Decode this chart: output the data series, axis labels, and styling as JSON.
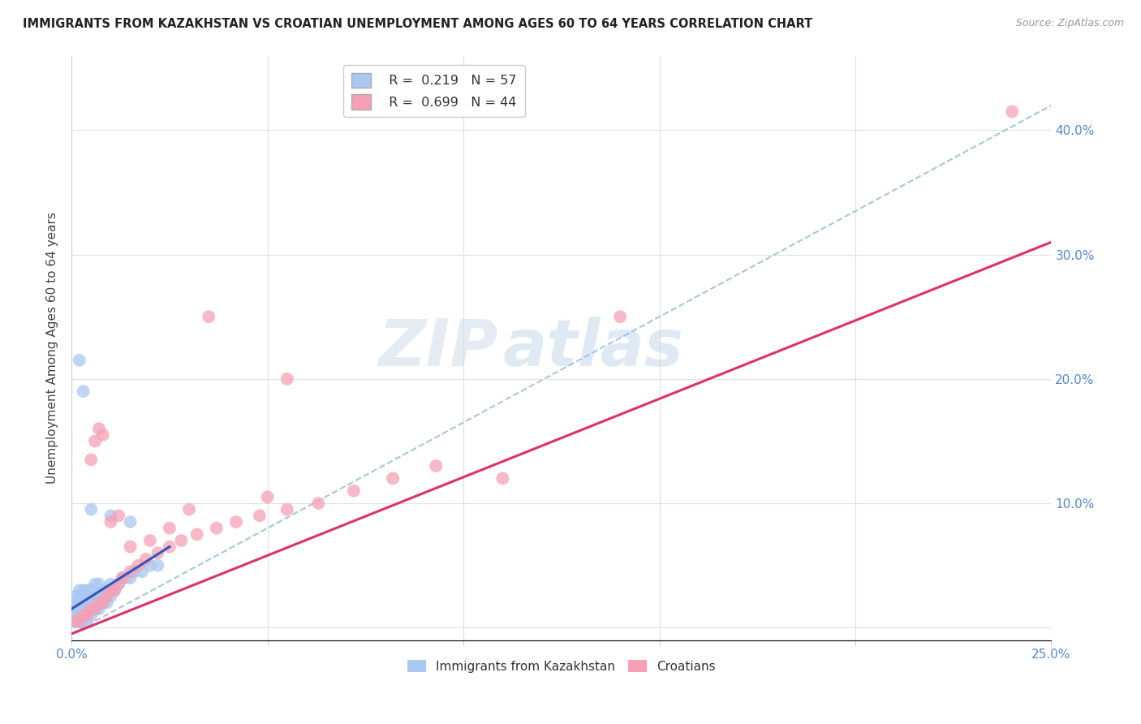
{
  "title": "IMMIGRANTS FROM KAZAKHSTAN VS CROATIAN UNEMPLOYMENT AMONG AGES 60 TO 64 YEARS CORRELATION CHART",
  "source": "Source: ZipAtlas.com",
  "ylabel": "Unemployment Among Ages 60 to 64 years",
  "xlim": [
    0.0,
    0.25
  ],
  "ylim": [
    -0.01,
    0.46
  ],
  "yticks": [
    0.0,
    0.1,
    0.2,
    0.3,
    0.4
  ],
  "ytick_labels_right": [
    "",
    "10.0%",
    "20.0%",
    "30.0%",
    "40.0%"
  ],
  "xticks": [
    0.0,
    0.05,
    0.1,
    0.15,
    0.2,
    0.25
  ],
  "xtick_labels": [
    "0.0%",
    "",
    "",
    "",
    "",
    "25.0%"
  ],
  "watermark_zip": "ZIP",
  "watermark_atlas": "atlas",
  "legend_R1": "R =  0.219",
  "legend_N1": "N = 57",
  "legend_R2": "R =  0.699",
  "legend_N2": "N = 44",
  "color_kaz": "#aac8f0",
  "color_cro": "#f5a0b5",
  "color_line_kaz": "#3355bb",
  "color_line_cro": "#e03065",
  "color_line_diag": "#99bbdd",
  "background_color": "#ffffff",
  "grid_color": "#e0e0e0",
  "kaz_x": [
    0.001,
    0.001,
    0.001,
    0.001,
    0.001,
    0.001,
    0.001,
    0.001,
    0.002,
    0.002,
    0.002,
    0.002,
    0.002,
    0.002,
    0.002,
    0.002,
    0.003,
    0.003,
    0.003,
    0.003,
    0.003,
    0.003,
    0.004,
    0.004,
    0.004,
    0.004,
    0.004,
    0.005,
    0.005,
    0.005,
    0.005,
    0.006,
    0.006,
    0.006,
    0.007,
    0.007,
    0.007,
    0.008,
    0.008,
    0.009,
    0.009,
    0.01,
    0.01,
    0.011,
    0.012,
    0.013,
    0.014,
    0.015,
    0.016,
    0.018,
    0.02,
    0.022,
    0.002,
    0.003,
    0.005,
    0.01,
    0.015
  ],
  "kaz_y": [
    0.005,
    0.005,
    0.005,
    0.01,
    0.01,
    0.015,
    0.02,
    0.025,
    0.005,
    0.005,
    0.01,
    0.01,
    0.015,
    0.02,
    0.025,
    0.03,
    0.005,
    0.01,
    0.015,
    0.02,
    0.025,
    0.03,
    0.005,
    0.01,
    0.015,
    0.025,
    0.03,
    0.01,
    0.015,
    0.02,
    0.03,
    0.015,
    0.025,
    0.035,
    0.015,
    0.025,
    0.035,
    0.02,
    0.03,
    0.02,
    0.03,
    0.025,
    0.035,
    0.03,
    0.035,
    0.04,
    0.04,
    0.04,
    0.045,
    0.045,
    0.05,
    0.05,
    0.215,
    0.19,
    0.095,
    0.09,
    0.085
  ],
  "cro_x": [
    0.001,
    0.002,
    0.003,
    0.004,
    0.005,
    0.006,
    0.007,
    0.008,
    0.009,
    0.01,
    0.011,
    0.012,
    0.013,
    0.015,
    0.017,
    0.019,
    0.022,
    0.025,
    0.028,
    0.032,
    0.037,
    0.042,
    0.048,
    0.055,
    0.063,
    0.072,
    0.082,
    0.093,
    0.035,
    0.055,
    0.11,
    0.14,
    0.005,
    0.006,
    0.007,
    0.008,
    0.01,
    0.012,
    0.015,
    0.02,
    0.025,
    0.03,
    0.05,
    0.24
  ],
  "cro_y": [
    0.005,
    0.005,
    0.01,
    0.01,
    0.015,
    0.015,
    0.02,
    0.02,
    0.025,
    0.03,
    0.03,
    0.035,
    0.04,
    0.045,
    0.05,
    0.055,
    0.06,
    0.065,
    0.07,
    0.075,
    0.08,
    0.085,
    0.09,
    0.095,
    0.1,
    0.11,
    0.12,
    0.13,
    0.25,
    0.2,
    0.12,
    0.25,
    0.135,
    0.15,
    0.16,
    0.155,
    0.085,
    0.09,
    0.065,
    0.07,
    0.08,
    0.095,
    0.105,
    0.415
  ],
  "kaz_line_x0": 0.0,
  "kaz_line_y0": 0.015,
  "kaz_line_x1": 0.025,
  "kaz_line_y1": 0.065,
  "cro_line_x0": 0.0,
  "cro_line_y0": -0.005,
  "cro_line_x1": 0.25,
  "cro_line_y1": 0.31,
  "diag_line_x0": 0.0,
  "diag_line_y0": -0.005,
  "diag_line_x1": 0.25,
  "diag_line_y1": 0.42
}
